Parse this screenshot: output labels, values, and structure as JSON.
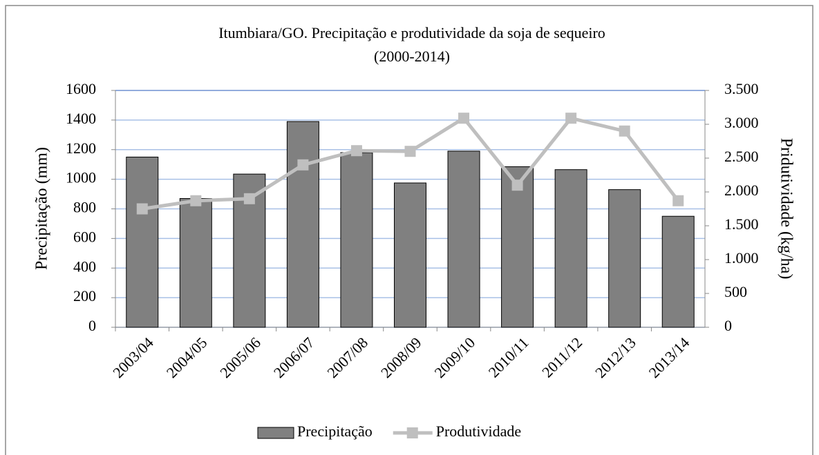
{
  "chart_data": {
    "type": "combo",
    "title": [
      "Itumbiara/GO. Precipitação e produtividade  da soja de sequeiro",
      "(2000-2014)"
    ],
    "y_label": "Precipitação (mm)",
    "y2_label": "Pridutividade (kg/ha)",
    "categories": [
      "2003/04",
      "2004/05",
      "2005/06",
      "2006/07",
      "2007/08",
      "2008/09",
      "2009/10",
      "2010/11",
      "2011/12",
      "2012/13",
      "2013/14"
    ],
    "series": [
      {
        "name": "Precipitação",
        "type": "bar",
        "color": "#808080",
        "values": [
          1150,
          870,
          1035,
          1390,
          1180,
          975,
          1190,
          1085,
          1065,
          930,
          750
        ]
      },
      {
        "name": "Produtividade",
        "type": "line",
        "axis": "y2",
        "color": "#bfbfbf",
        "values": [
          1750,
          1870,
          1900,
          2400,
          2610,
          2600,
          3090,
          2100,
          3090,
          2900,
          1870
        ]
      }
    ],
    "ylim": [
      0,
      1600
    ],
    "yticks": [
      0,
      200,
      400,
      600,
      800,
      1000,
      1200,
      1400,
      1600
    ],
    "y2lim": [
      0,
      3500
    ],
    "y2ticks": [
      0,
      500,
      {
        "value": 1000,
        "label": "1.000"
      },
      {
        "value": 1500,
        "label": "1.500"
      },
      {
        "value": 2000,
        "label": "2.000"
      },
      {
        "value": 2500,
        "label": "2.500"
      },
      {
        "value": 3000,
        "label": "3.000"
      },
      {
        "value": 3500,
        "label": "3.500"
      }
    ],
    "grid": true,
    "legend": "bottom"
  }
}
